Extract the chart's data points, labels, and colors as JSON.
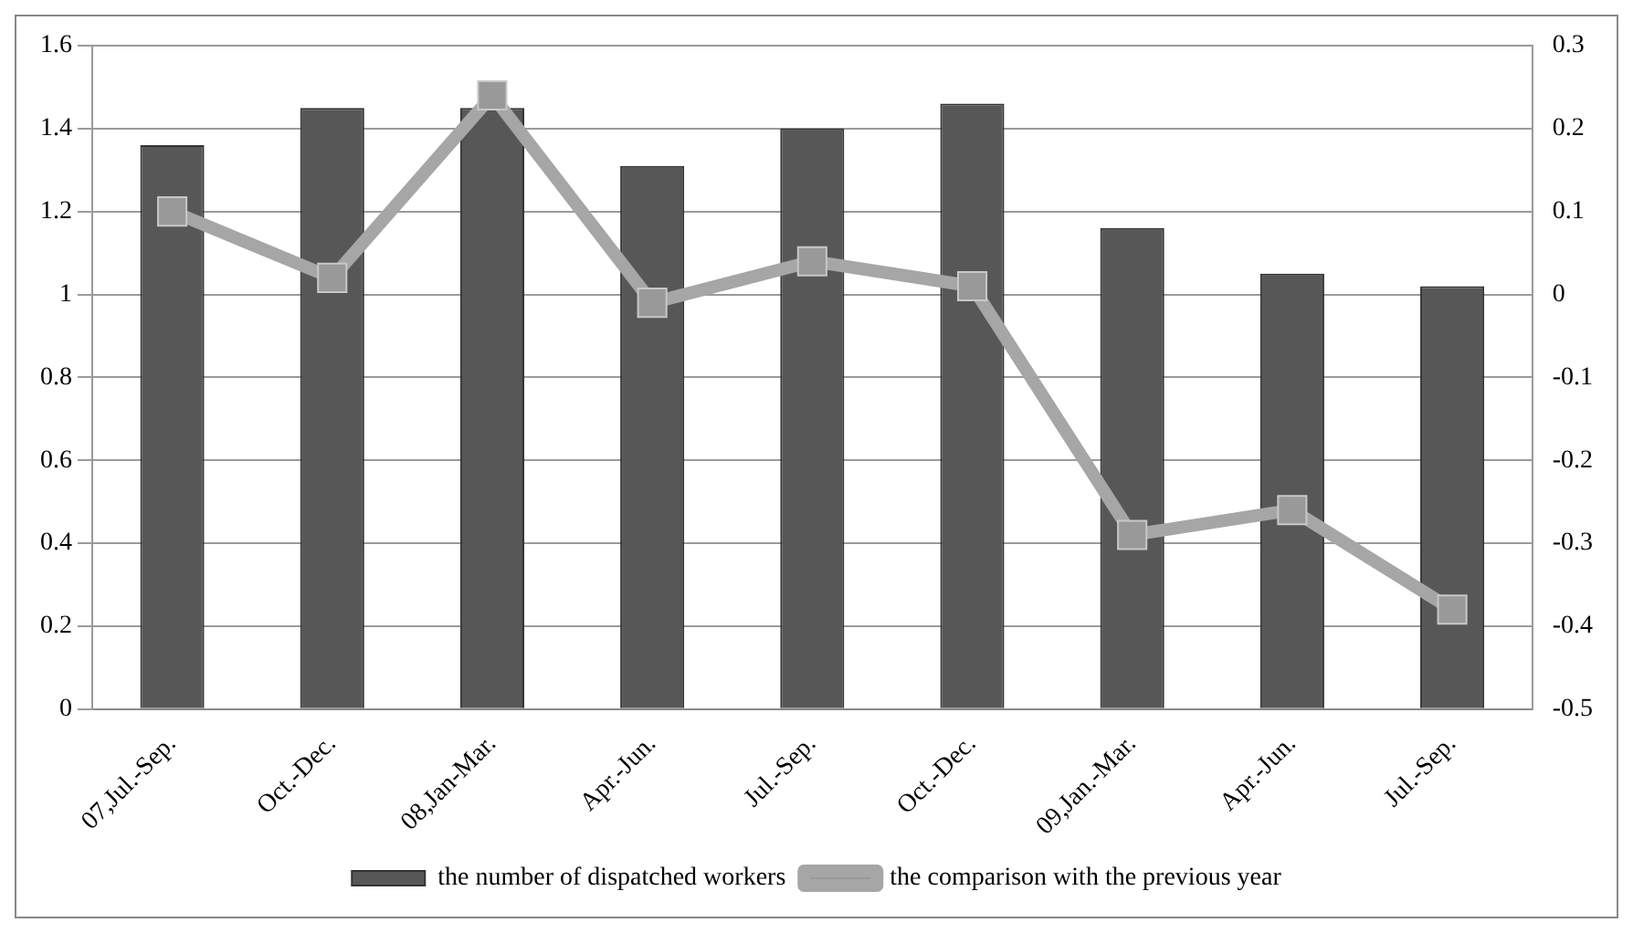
{
  "chart_data": {
    "type": "bar",
    "categories": [
      "07,Jul.-Sep.",
      "Oct.-Dec.",
      "08,Jan-Mar.",
      "Apr.-Jun.",
      "Jul.-Sep.",
      "Oct.-Dec.",
      "09,Jan.-Mar.",
      "Apr.-Jun.",
      "Jul.-Sep."
    ],
    "series": [
      {
        "name": "the number of dispatched workers",
        "color": "#575757",
        "values": [
          1.36,
          1.45,
          1.45,
          1.31,
          1.4,
          1.46,
          1.16,
          1.05,
          1.02
        ]
      },
      {
        "name": "the comparison with the previous year",
        "type": "line",
        "axis": "y2",
        "color": "#a6a6a6",
        "marker": "square",
        "values": [
          0.1,
          0.02,
          0.24,
          -0.01,
          0.04,
          0.01,
          -0.29,
          -0.26,
          -0.38
        ]
      }
    ],
    "ylim": [
      0,
      1.6
    ],
    "yticks": [
      0,
      0.2,
      0.4,
      0.6,
      0.8,
      1,
      1.2,
      1.4,
      1.6
    ],
    "y2lim": [
      -0.5,
      0.3
    ],
    "y2ticks": [
      -0.5,
      -0.4,
      -0.3,
      -0.2,
      -0.1,
      0,
      0.1,
      0.2,
      0.3
    ],
    "grid": "y",
    "legend": "bottom"
  }
}
